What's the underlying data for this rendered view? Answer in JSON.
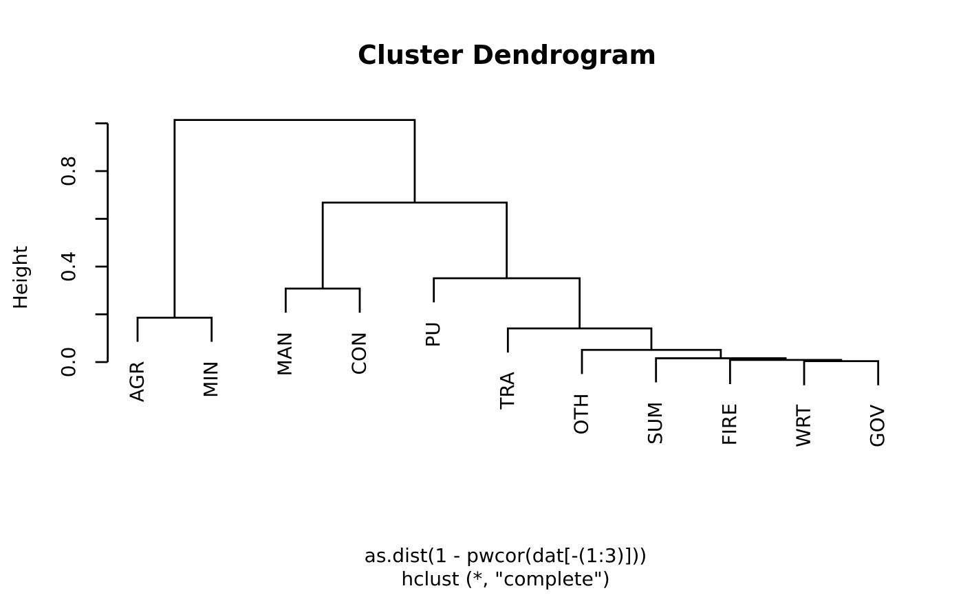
{
  "chart": {
    "title": "Cluster Dendrogram",
    "ylab": "Height",
    "caption_line1": "as.dist(1 - pwcor(dat[-(1:3)]))",
    "caption_line2": "hclust (*, \"complete\")"
  },
  "chart_data": {
    "type": "dendrogram",
    "title": "Cluster Dendrogram",
    "ylabel": "Height",
    "xlabel_lines": [
      "as.dist(1 - pwcor(dat[-(1:3)]))",
      "hclust (*, \"complete\")"
    ],
    "method": "complete",
    "leaves": [
      "AGR",
      "MIN",
      "MAN",
      "CON",
      "PU",
      "TRA",
      "OTH",
      "SUM",
      "FIRE",
      "WRT",
      "GOV"
    ],
    "axis": {
      "ylim": [
        0,
        1
      ],
      "ticks": [
        0,
        0.2,
        0.4,
        0.6,
        0.8,
        1.0
      ],
      "labeled_ticks": [
        {
          "value": 0.0,
          "label": "0.0"
        },
        {
          "value": 0.4,
          "label": "0.4"
        },
        {
          "value": 0.8,
          "label": "0.8"
        }
      ]
    },
    "grid": false,
    "hang": 0.1,
    "tree": {
      "height": 1.014,
      "children": [
        {
          "height": 0.186,
          "children": [
            {
              "leaf": "AGR"
            },
            {
              "leaf": "MIN"
            }
          ]
        },
        {
          "height": 0.668,
          "children": [
            {
              "height": 0.308,
              "children": [
                {
                  "leaf": "MAN"
                },
                {
                  "leaf": "CON"
                }
              ]
            },
            {
              "height": 0.351,
              "children": [
                {
                  "leaf": "PU"
                },
                {
                  "height": 0.141,
                  "children": [
                    {
                      "leaf": "TRA"
                    },
                    {
                      "height": 0.051,
                      "children": [
                        {
                          "leaf": "OTH"
                        },
                        {
                          "height": 0.016,
                          "children": [
                            {
                              "leaf": "SUM"
                            },
                            {
                              "height": 0.009,
                              "children": [
                                {
                                  "leaf": "FIRE"
                                },
                                {
                                  "height": 0.004,
                                  "children": [
                                    {
                                      "leaf": "WRT"
                                    },
                                    {
                                      "leaf": "GOV"
                                    }
                                  ]
                                }
                              ]
                            }
                          ]
                        }
                      ]
                    }
                  ]
                }
              ]
            }
          ]
        }
      ]
    }
  }
}
